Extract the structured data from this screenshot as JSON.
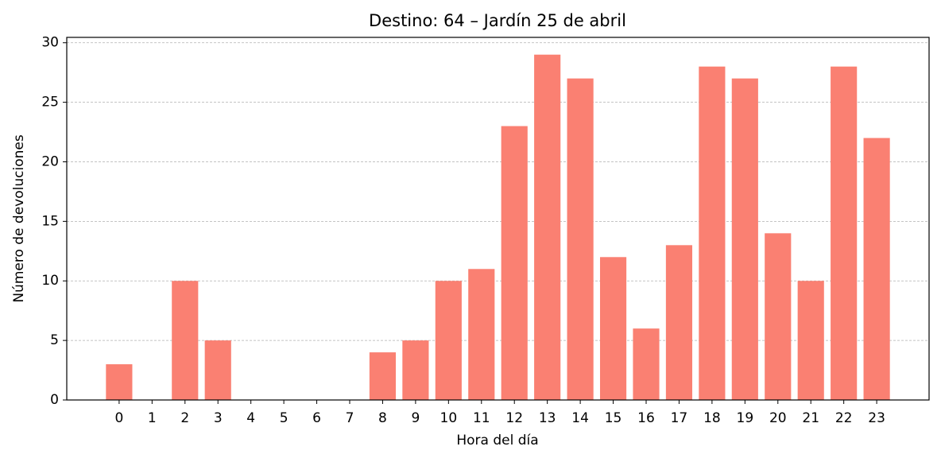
{
  "chart_data": {
    "type": "bar",
    "title": "Destino: 64 – Jardín 25 de abril",
    "x_label": "Hora del día",
    "y_label": "Número de devoluciones",
    "categories": [
      "0",
      "1",
      "2",
      "3",
      "4",
      "5",
      "6",
      "7",
      "8",
      "9",
      "10",
      "11",
      "12",
      "13",
      "14",
      "15",
      "16",
      "17",
      "18",
      "19",
      "20",
      "21",
      "22",
      "23"
    ],
    "values": [
      3,
      0,
      10,
      5,
      0,
      0,
      0,
      0,
      4,
      5,
      10,
      11,
      23,
      29,
      27,
      12,
      6,
      13,
      28,
      27,
      14,
      10,
      28,
      22
    ],
    "color": "#fa8072",
    "ylim": [
      0,
      30.45
    ],
    "yticks": [
      0,
      5,
      10,
      15,
      20,
      25,
      30
    ],
    "grid": true
  }
}
